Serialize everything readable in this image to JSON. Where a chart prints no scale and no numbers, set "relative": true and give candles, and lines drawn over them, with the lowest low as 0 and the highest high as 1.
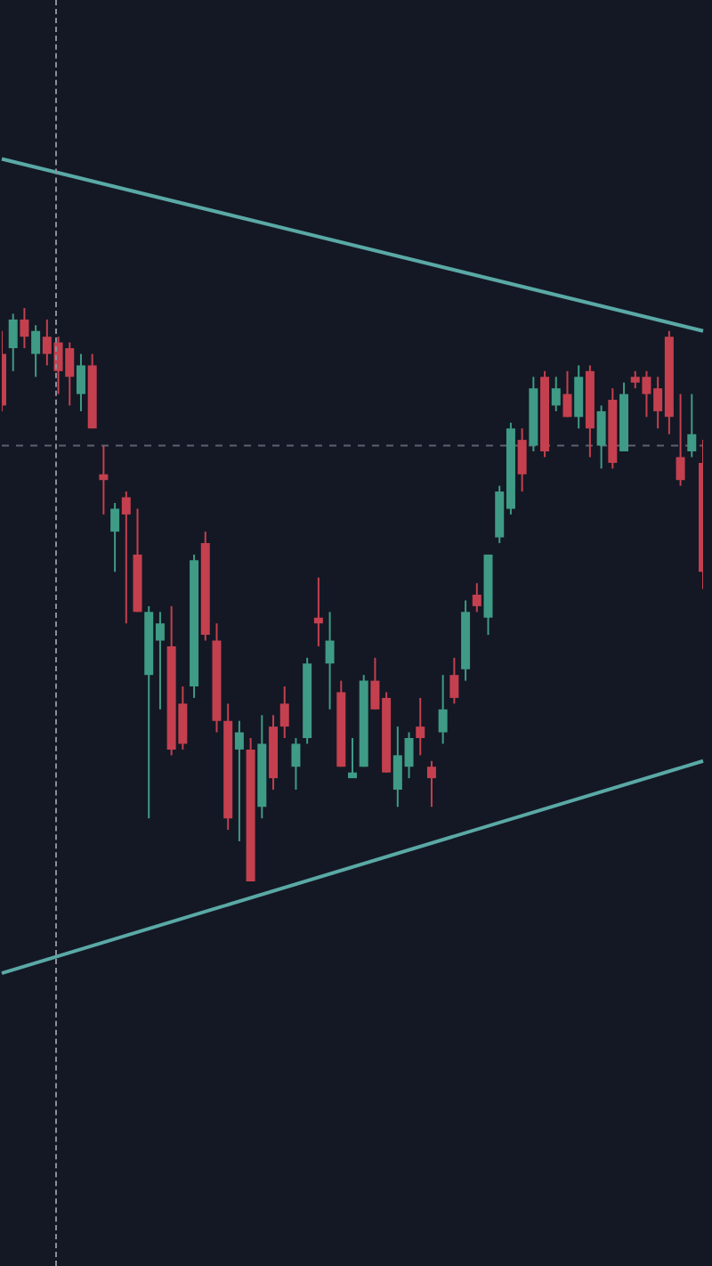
{
  "chart_data": {
    "type": "candlestick",
    "relative": true,
    "legend": false,
    "categories": [
      null,
      null,
      null,
      null,
      null,
      null,
      null,
      null,
      null,
      null,
      null,
      null,
      null,
      null,
      null,
      null,
      null,
      null,
      null,
      null,
      null,
      null,
      null,
      null,
      null,
      null,
      null,
      null,
      null,
      null,
      null,
      null,
      null,
      null,
      null,
      null,
      null,
      null,
      null,
      null,
      null,
      null,
      null,
      null,
      null,
      null,
      null,
      null,
      null,
      null,
      null,
      null,
      null,
      null,
      null,
      null,
      null,
      null,
      null,
      null,
      null,
      null,
      null
    ],
    "ohlc": [
      [
        0.92,
        0.96,
        0.82,
        0.83
      ],
      [
        0.93,
        0.99,
        0.89,
        0.98
      ],
      [
        0.98,
        1.0,
        0.93,
        0.95
      ],
      [
        0.92,
        0.97,
        0.88,
        0.96
      ],
      [
        0.95,
        0.98,
        0.9,
        0.92
      ],
      [
        0.94,
        0.95,
        0.85,
        0.89
      ],
      [
        0.93,
        0.94,
        0.83,
        0.88
      ],
      [
        0.85,
        0.92,
        0.82,
        0.9
      ],
      [
        0.9,
        0.92,
        0.79,
        0.79
      ],
      [
        0.71,
        0.76,
        0.64,
        0.7
      ],
      [
        0.61,
        0.66,
        0.54,
        0.65
      ],
      [
        0.67,
        0.68,
        0.45,
        0.64
      ],
      [
        0.57,
        0.65,
        0.47,
        0.47
      ],
      [
        0.36,
        0.48,
        0.11,
        0.47
      ],
      [
        0.42,
        0.47,
        0.3,
        0.45
      ],
      [
        0.41,
        0.48,
        0.22,
        0.23
      ],
      [
        0.31,
        0.34,
        0.23,
        0.24
      ],
      [
        0.34,
        0.57,
        0.32,
        0.56
      ],
      [
        0.59,
        0.61,
        0.42,
        0.43
      ],
      [
        0.42,
        0.45,
        0.26,
        0.28
      ],
      [
        0.28,
        0.31,
        0.09,
        0.11
      ],
      [
        0.23,
        0.28,
        0.07,
        0.26
      ],
      [
        0.23,
        0.25,
        0,
        0
      ],
      [
        0.13,
        0.29,
        0.11,
        0.24
      ],
      [
        0.27,
        0.29,
        0.16,
        0.18
      ],
      [
        0.31,
        0.34,
        0.25,
        0.27
      ],
      [
        0.2,
        0.25,
        0.16,
        0.24
      ],
      [
        0.25,
        0.39,
        0.24,
        0.38
      ],
      [
        0.46,
        0.53,
        0.41,
        0.45
      ],
      [
        0.38,
        0.47,
        0.3,
        0.42
      ],
      [
        0.33,
        0.35,
        0.2,
        0.2
      ],
      [
        0.18,
        0.25,
        0.18,
        0.19
      ],
      [
        0.2,
        0.36,
        0.2,
        0.35
      ],
      [
        0.35,
        0.39,
        0.3,
        0.3
      ],
      [
        0.32,
        0.33,
        0.19,
        0.19
      ],
      [
        0.16,
        0.27,
        0.13,
        0.22
      ],
      [
        0.2,
        0.26,
        0.18,
        0.25
      ],
      [
        0.27,
        0.32,
        0.22,
        0.25
      ],
      [
        0.2,
        0.21,
        0.13,
        0.18
      ],
      [
        0.26,
        0.36,
        0.24,
        0.3
      ],
      [
        0.36,
        0.39,
        0.31,
        0.32
      ],
      [
        0.37,
        0.49,
        0.35,
        0.47
      ],
      [
        0.5,
        0.52,
        0.47,
        0.48
      ],
      [
        0.46,
        0.57,
        0.43,
        0.57
      ],
      [
        0.6,
        0.69,
        0.59,
        0.68
      ],
      [
        0.65,
        0.8,
        0.64,
        0.79
      ],
      [
        0.77,
        0.79,
        0.68,
        0.71
      ],
      [
        0.76,
        0.88,
        0.75,
        0.86
      ],
      [
        0.88,
        0.89,
        0.74,
        0.75
      ],
      [
        0.83,
        0.88,
        0.82,
        0.86
      ],
      [
        0.85,
        0.89,
        0.81,
        0.81
      ],
      [
        0.81,
        0.9,
        0.79,
        0.88
      ],
      [
        0.89,
        0.9,
        0.74,
        0.79
      ],
      [
        0.76,
        0.83,
        0.72,
        0.82
      ],
      [
        0.84,
        0.86,
        0.72,
        0.73
      ],
      [
        0.75,
        0.87,
        0.75,
        0.85
      ],
      [
        0.88,
        0.89,
        0.86,
        0.87
      ],
      [
        0.88,
        0.89,
        0.81,
        0.85
      ],
      [
        0.86,
        0.88,
        0.79,
        0.82
      ],
      [
        0.95,
        0.96,
        0.78,
        0.81
      ],
      [
        0.74,
        0.85,
        0.69,
        0.7
      ],
      [
        0.75,
        0.85,
        0.74,
        0.78
      ],
      [
        0.73,
        0.77,
        0.51,
        0.54
      ]
    ],
    "colors": [
      "#c4404f",
      "#3f9b86",
      "#c4404f",
      "#3f9b86",
      "#c4404f",
      "#c4404f",
      "#c4404f",
      "#3f9b86",
      "#c4404f",
      "#c4404f",
      "#3f9b86",
      "#c4404f",
      "#c4404f",
      "#3f9b86",
      "#3f9b86",
      "#c4404f",
      "#c4404f",
      "#3f9b86",
      "#c4404f",
      "#c4404f",
      "#c4404f",
      "#3f9b86",
      "#c4404f",
      "#3f9b86",
      "#c4404f",
      "#c4404f",
      "#3f9b86",
      "#3f9b86",
      "#c4404f",
      "#3f9b86",
      "#c4404f",
      "#3f9b86",
      "#3f9b86",
      "#c4404f",
      "#c4404f",
      "#3f9b86",
      "#3f9b86",
      "#c4404f",
      "#c4404f",
      "#3f9b86",
      "#c4404f",
      "#3f9b86",
      "#c4404f",
      "#3f9b86",
      "#3f9b86",
      "#3f9b86",
      "#c4404f",
      "#3f9b86",
      "#c4404f",
      "#3f9b86",
      "#c4404f",
      "#3f9b86",
      "#c4404f",
      "#3f9b86",
      "#c4404f",
      "#3f9b86",
      "#c4404f",
      "#c4404f",
      "#c4404f",
      "#c4404f",
      "#c4404f",
      "#3f9b86",
      "#c4404f"
    ],
    "series": [
      {
        "type": "line",
        "color": "#5aa9a6",
        "values": [
          1.26,
          null,
          null,
          null,
          null,
          null,
          null,
          null,
          null,
          null,
          null,
          null,
          null,
          null,
          null,
          null,
          null,
          null,
          null,
          null,
          null,
          null,
          null,
          null,
          null,
          null,
          null,
          null,
          null,
          null,
          null,
          null,
          null,
          null,
          null,
          null,
          null,
          null,
          null,
          null,
          null,
          null,
          null,
          null,
          null,
          null,
          null,
          null,
          null,
          null,
          null,
          null,
          null,
          null,
          null,
          null,
          null,
          null,
          null,
          null,
          null,
          null,
          0.96
        ]
      },
      {
        "type": "line",
        "color": "#5aa9a6",
        "values": [
          -0.16,
          null,
          null,
          null,
          null,
          null,
          null,
          null,
          null,
          null,
          null,
          null,
          null,
          null,
          null,
          null,
          null,
          null,
          null,
          null,
          null,
          null,
          null,
          null,
          null,
          null,
          null,
          null,
          null,
          null,
          null,
          null,
          null,
          null,
          null,
          null,
          null,
          null,
          null,
          null,
          null,
          null,
          null,
          null,
          null,
          null,
          null,
          null,
          null,
          null,
          null,
          null,
          null,
          null,
          null,
          null,
          null,
          null,
          null,
          null,
          null,
          null,
          0.21
        ]
      }
    ],
    "ref_lines": [
      {
        "axis": "y",
        "value": 0.76,
        "color": "#5c6170",
        "line_style": "dashed"
      }
    ]
  }
}
